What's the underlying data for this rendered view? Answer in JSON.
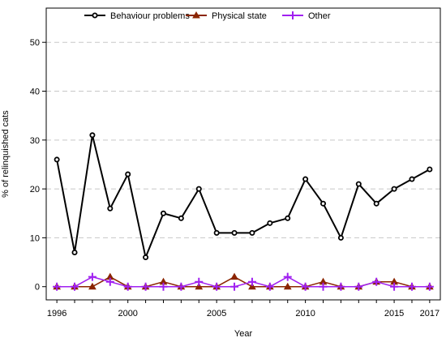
{
  "chart_data": {
    "type": "line",
    "title": "",
    "xlabel": "Year",
    "ylabel": "% of relinquished cats",
    "xlim": [
      1996,
      2017
    ],
    "ylim": [
      0,
      50
    ],
    "x_ticks": [
      1996,
      2000,
      2005,
      2010,
      2015,
      2017
    ],
    "y_ticks": [
      0,
      10,
      20,
      30,
      40,
      50
    ],
    "grid": "horizontal dashed",
    "legend_position": "top",
    "x": [
      1996,
      1997,
      1998,
      1999,
      2000,
      2001,
      2002,
      2003,
      2004,
      2005,
      2006,
      2007,
      2008,
      2009,
      2010,
      2011,
      2012,
      2013,
      2014,
      2015,
      2016,
      2017
    ],
    "series": [
      {
        "name": "Behaviour problems",
        "color": "#000000",
        "marker": "open-circle",
        "values": [
          26,
          7,
          31,
          16,
          23,
          6,
          15,
          14,
          20,
          11,
          11,
          11,
          13,
          14,
          22,
          17,
          10,
          21,
          17,
          20,
          22,
          24
        ]
      },
      {
        "name": "Physical state",
        "color": "#8b2500",
        "marker": "triangle",
        "values": [
          0,
          0,
          0,
          2,
          0,
          0,
          1,
          0,
          0,
          0,
          2,
          0,
          0,
          0,
          0,
          1,
          0,
          0,
          1,
          1,
          0,
          0
        ]
      },
      {
        "name": "Other",
        "color": "#a020f0",
        "marker": "plus",
        "values": [
          0,
          0,
          2,
          1,
          0,
          0,
          0,
          0,
          1,
          0,
          0,
          1,
          0,
          2,
          0,
          0,
          0,
          0,
          1,
          0,
          0,
          0
        ]
      }
    ]
  }
}
